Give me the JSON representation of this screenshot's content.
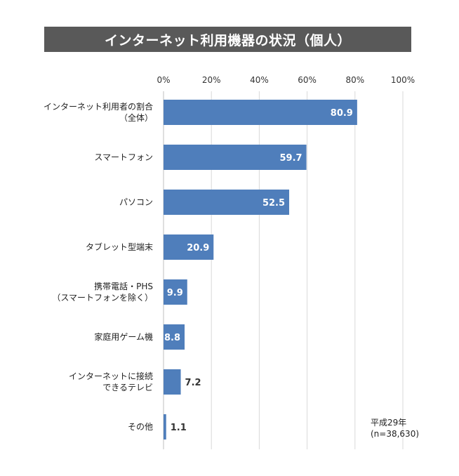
{
  "chart_data": {
    "type": "bar",
    "orientation": "horizontal",
    "title": "インターネット利用機器の状況（個人）",
    "categories": [
      [
        "インターネット利用者の割合",
        "（全体）"
      ],
      [
        "スマートフォン"
      ],
      [
        "パソコン"
      ],
      [
        "タブレット型端末"
      ],
      [
        "携帯電話・PHS",
        "（スマートフォンを除く）"
      ],
      [
        "家庭用ゲーム機"
      ],
      [
        "インターネットに接続",
        "できるテレビ"
      ],
      [
        "その他"
      ]
    ],
    "values": [
      80.9,
      59.7,
      52.5,
      20.9,
      9.9,
      8.8,
      7.2,
      1.1
    ],
    "value_labels": [
      "80.9",
      "59.7",
      "52.5",
      "20.9",
      "9.9",
      "8.8",
      "7.2",
      "1.1"
    ],
    "xlim": [
      0,
      100
    ],
    "ticks": [
      0,
      20,
      40,
      60,
      80,
      100
    ],
    "tick_labels": [
      "0%",
      "20%",
      "40%",
      "60%",
      "80%",
      "100%"
    ],
    "grid": true,
    "bar_color": "#4f7ebb",
    "note": [
      "平成29年",
      "(n=38,630)"
    ]
  }
}
